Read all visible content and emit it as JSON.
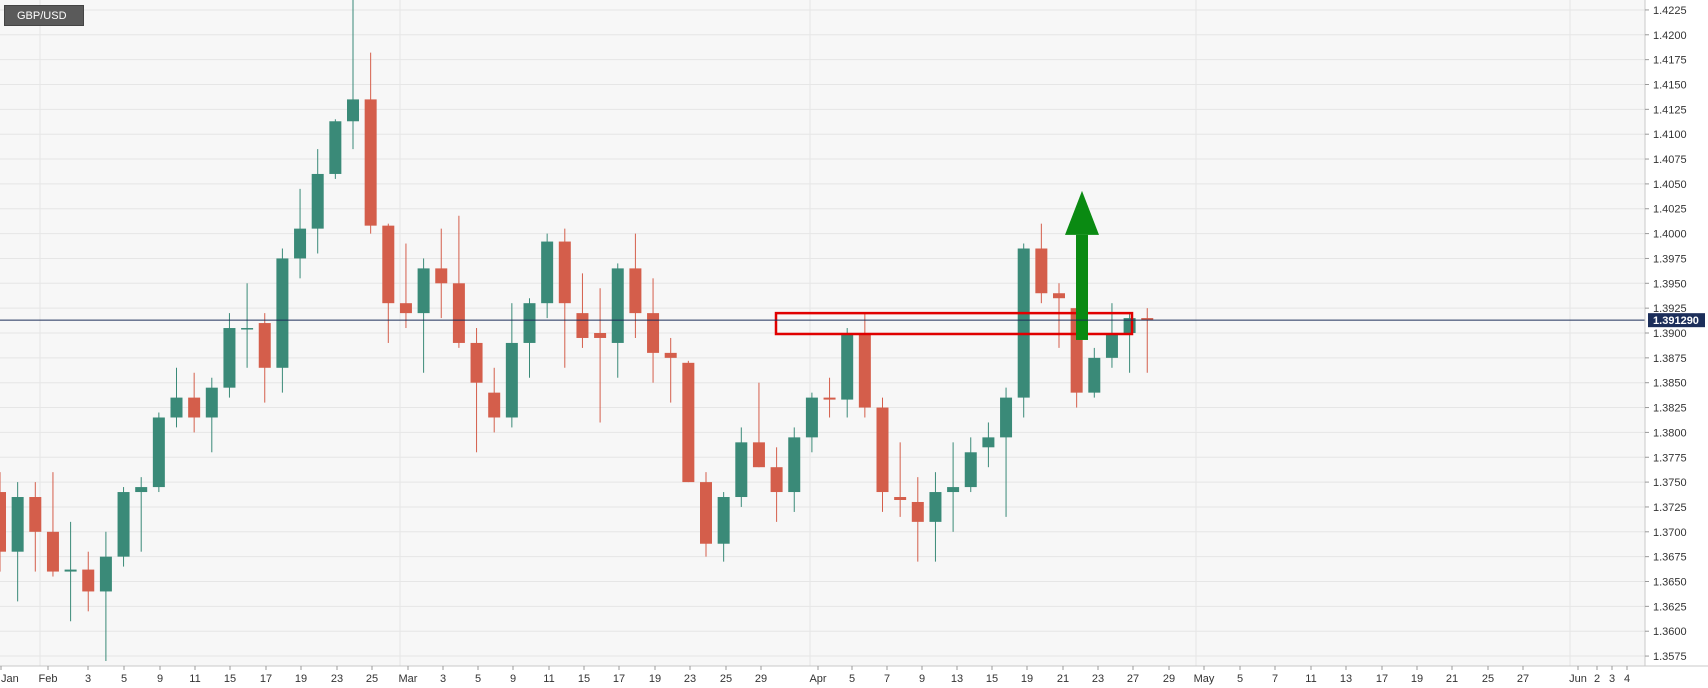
{
  "symbol": "GBP/USD",
  "price_label": "1.391290",
  "colors": {
    "up": "#3a8a78",
    "down": "#d45e4b",
    "background": "#f7f7f7",
    "grid": "#e6e6e6",
    "price_line": "#1c2e5a",
    "price_badge": "#1c2e5a",
    "box": "#e00000",
    "arrow": "#0a8a12"
  },
  "chart_data": {
    "type": "candlestick",
    "title": "GBP/USD",
    "ylim": [
      1.3565,
      1.4235
    ],
    "current_price": 1.39129,
    "y_ticks": [
      "1.3575",
      "1.3600",
      "1.3625",
      "1.3650",
      "1.3675",
      "1.3700",
      "1.3725",
      "1.3750",
      "1.3775",
      "1.3800",
      "1.3825",
      "1.3850",
      "1.3875",
      "1.3900",
      "1.3925",
      "1.3950",
      "1.3975",
      "1.4000",
      "1.4025",
      "1.4050",
      "1.4075",
      "1.4100",
      "1.4125",
      "1.4150",
      "1.4175",
      "1.4200",
      "1.4225"
    ],
    "x_labels": [
      "Jan",
      "Feb",
      "3",
      "5",
      "9",
      "11",
      "15",
      "17",
      "19",
      "23",
      "25",
      "Mar",
      "3",
      "5",
      "9",
      "11",
      "15",
      "17",
      "19",
      "23",
      "25",
      "29",
      "Apr",
      "5",
      "7",
      "9",
      "13",
      "15",
      "19",
      "21",
      "23",
      "27",
      "29",
      "May",
      "5",
      "7",
      "11",
      "13",
      "17",
      "19",
      "21",
      "25",
      "27",
      "Jun",
      "2",
      "3",
      "4"
    ],
    "candles": [
      {
        "o": 1.374,
        "h": 1.376,
        "l": 1.366,
        "c": 1.368
      },
      {
        "o": 1.368,
        "h": 1.375,
        "l": 1.363,
        "c": 1.3735
      },
      {
        "o": 1.3735,
        "h": 1.375,
        "l": 1.366,
        "c": 1.37
      },
      {
        "o": 1.37,
        "h": 1.376,
        "l": 1.3655,
        "c": 1.366
      },
      {
        "o": 1.366,
        "h": 1.371,
        "l": 1.361,
        "c": 1.3662
      },
      {
        "o": 1.3662,
        "h": 1.368,
        "l": 1.362,
        "c": 1.364
      },
      {
        "o": 1.364,
        "h": 1.37,
        "l": 1.357,
        "c": 1.3675
      },
      {
        "o": 1.3675,
        "h": 1.3745,
        "l": 1.3665,
        "c": 1.374
      },
      {
        "o": 1.374,
        "h": 1.3755,
        "l": 1.368,
        "c": 1.3745
      },
      {
        "o": 1.3745,
        "h": 1.382,
        "l": 1.374,
        "c": 1.3815
      },
      {
        "o": 1.3815,
        "h": 1.3865,
        "l": 1.3805,
        "c": 1.3835
      },
      {
        "o": 1.3835,
        "h": 1.386,
        "l": 1.38,
        "c": 1.3815
      },
      {
        "o": 1.3815,
        "h": 1.3855,
        "l": 1.378,
        "c": 1.3845
      },
      {
        "o": 1.3845,
        "h": 1.392,
        "l": 1.3835,
        "c": 1.3905
      },
      {
        "o": 1.3905,
        "h": 1.395,
        "l": 1.3865,
        "c": 1.3905
      },
      {
        "o": 1.391,
        "h": 1.392,
        "l": 1.383,
        "c": 1.3865
      },
      {
        "o": 1.3865,
        "h": 1.3985,
        "l": 1.384,
        "c": 1.3975
      },
      {
        "o": 1.3975,
        "h": 1.4045,
        "l": 1.3955,
        "c": 1.4005
      },
      {
        "o": 1.4005,
        "h": 1.4085,
        "l": 1.398,
        "c": 1.406
      },
      {
        "o": 1.406,
        "h": 1.4115,
        "l": 1.4055,
        "c": 1.4113
      },
      {
        "o": 1.4113,
        "h": 1.4235,
        "l": 1.4085,
        "c": 1.4135
      },
      {
        "o": 1.4135,
        "h": 1.4182,
        "l": 1.4,
        "c": 1.4008
      },
      {
        "o": 1.4008,
        "h": 1.401,
        "l": 1.389,
        "c": 1.393
      },
      {
        "o": 1.393,
        "h": 1.399,
        "l": 1.3905,
        "c": 1.392
      },
      {
        "o": 1.392,
        "h": 1.3975,
        "l": 1.386,
        "c": 1.3965
      },
      {
        "o": 1.3965,
        "h": 1.4005,
        "l": 1.3915,
        "c": 1.395
      },
      {
        "o": 1.395,
        "h": 1.4018,
        "l": 1.3885,
        "c": 1.389
      },
      {
        "o": 1.389,
        "h": 1.3905,
        "l": 1.378,
        "c": 1.385
      },
      {
        "o": 1.384,
        "h": 1.3865,
        "l": 1.38,
        "c": 1.3815
      },
      {
        "o": 1.3815,
        "h": 1.393,
        "l": 1.3805,
        "c": 1.389
      },
      {
        "o": 1.389,
        "h": 1.3935,
        "l": 1.3855,
        "c": 1.393
      },
      {
        "o": 1.393,
        "h": 1.4,
        "l": 1.3915,
        "c": 1.3992
      },
      {
        "o": 1.3992,
        "h": 1.4005,
        "l": 1.3865,
        "c": 1.393
      },
      {
        "o": 1.392,
        "h": 1.396,
        "l": 1.3885,
        "c": 1.3895
      },
      {
        "o": 1.39,
        "h": 1.3945,
        "l": 1.381,
        "c": 1.3895
      },
      {
        "o": 1.389,
        "h": 1.397,
        "l": 1.3855,
        "c": 1.3965
      },
      {
        "o": 1.3965,
        "h": 1.4,
        "l": 1.3895,
        "c": 1.392
      },
      {
        "o": 1.392,
        "h": 1.3955,
        "l": 1.385,
        "c": 1.388
      },
      {
        "o": 1.388,
        "h": 1.3895,
        "l": 1.383,
        "c": 1.3875
      },
      {
        "o": 1.387,
        "h": 1.3872,
        "l": 1.375,
        "c": 1.375
      },
      {
        "o": 1.375,
        "h": 1.376,
        "l": 1.3675,
        "c": 1.3688
      },
      {
        "o": 1.3688,
        "h": 1.374,
        "l": 1.367,
        "c": 1.3735
      },
      {
        "o": 1.3735,
        "h": 1.3805,
        "l": 1.3725,
        "c": 1.379
      },
      {
        "o": 1.379,
        "h": 1.385,
        "l": 1.3765,
        "c": 1.3765
      },
      {
        "o": 1.3765,
        "h": 1.3785,
        "l": 1.371,
        "c": 1.374
      },
      {
        "o": 1.374,
        "h": 1.3805,
        "l": 1.372,
        "c": 1.3795
      },
      {
        "o": 1.3795,
        "h": 1.384,
        "l": 1.378,
        "c": 1.3835
      },
      {
        "o": 1.3835,
        "h": 1.3855,
        "l": 1.3815,
        "c": 1.3833
      },
      {
        "o": 1.3833,
        "h": 1.3905,
        "l": 1.3815,
        "c": 1.39
      },
      {
        "o": 1.39,
        "h": 1.392,
        "l": 1.3815,
        "c": 1.3825
      },
      {
        "o": 1.3825,
        "h": 1.3835,
        "l": 1.372,
        "c": 1.374
      },
      {
        "o": 1.3735,
        "h": 1.379,
        "l": 1.3715,
        "c": 1.3732
      },
      {
        "o": 1.373,
        "h": 1.3755,
        "l": 1.367,
        "c": 1.371
      },
      {
        "o": 1.371,
        "h": 1.376,
        "l": 1.367,
        "c": 1.374
      },
      {
        "o": 1.374,
        "h": 1.379,
        "l": 1.37,
        "c": 1.3745
      },
      {
        "o": 1.3745,
        "h": 1.3795,
        "l": 1.374,
        "c": 1.378
      },
      {
        "o": 1.3785,
        "h": 1.381,
        "l": 1.3765,
        "c": 1.3795
      },
      {
        "o": 1.3795,
        "h": 1.3845,
        "l": 1.3715,
        "c": 1.3835
      },
      {
        "o": 1.3835,
        "h": 1.399,
        "l": 1.3815,
        "c": 1.3985
      },
      {
        "o": 1.3985,
        "h": 1.401,
        "l": 1.393,
        "c": 1.394
      },
      {
        "o": 1.394,
        "h": 1.395,
        "l": 1.3885,
        "c": 1.3935
      },
      {
        "o": 1.3925,
        "h": 1.395,
        "l": 1.3825,
        "c": 1.384
      },
      {
        "o": 1.384,
        "h": 1.3885,
        "l": 1.3835,
        "c": 1.3875
      },
      {
        "o": 1.3875,
        "h": 1.393,
        "l": 1.3865,
        "c": 1.39
      },
      {
        "o": 1.39,
        "h": 1.392,
        "l": 1.386,
        "c": 1.3915
      },
      {
        "o": 1.3915,
        "h": 1.3925,
        "l": 1.386,
        "c": 1.3913
      }
    ],
    "annotations": [
      {
        "type": "rectangle",
        "y_range": [
          1.3899,
          1.392
        ]
      },
      {
        "type": "arrow",
        "direction": "up",
        "y_from": 1.3893,
        "y_to": 1.4043
      }
    ]
  }
}
